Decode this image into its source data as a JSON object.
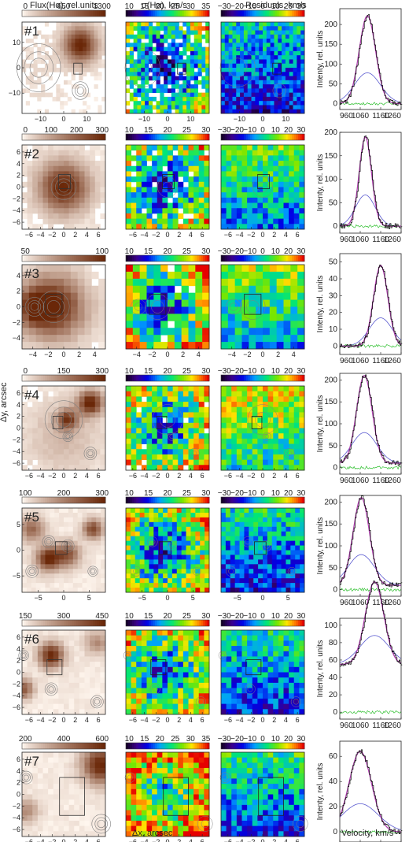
{
  "headers": {
    "flux": "Flux(Hα), rel.units",
    "sigma": "σ(Hα), km/s",
    "residuals": "Residuals, km/s"
  },
  "axis_labels": {
    "dy": "Δy, arcsec",
    "dx": "Δx, arcsec",
    "velocity": "Velocity, km/s",
    "intensity": "Intenty, rel. units"
  },
  "colors": {
    "flux_low": "#fff6ee",
    "flux_high": "#6a2708",
    "data_line": "#000000",
    "fit_total": "#b040b0",
    "fit_components": "#5a5ad0",
    "fit_residual": "#30c030",
    "contour": "#808080"
  },
  "chart_data": [
    {
      "type": "heatmap",
      "id": "flux-maps",
      "colorbar_ticks": [
        [
          "0",
          "650",
          "1300"
        ],
        [
          "0",
          "100",
          "200",
          "300"
        ],
        [
          "50",
          "100"
        ],
        [
          "0",
          "150",
          "300"
        ],
        [
          "100",
          "200",
          "300"
        ],
        [
          "150",
          "300",
          "450"
        ],
        [
          "200",
          "400",
          "600"
        ]
      ],
      "panel_labels": [
        "#1",
        "#2",
        "#3",
        "#4",
        "#5",
        "#6",
        "#7"
      ]
    },
    {
      "type": "heatmap",
      "id": "sigma-maps",
      "colorbar_ticks": [
        [
          "10",
          "15",
          "20",
          "25",
          "30",
          "35"
        ],
        [
          "10",
          "15",
          "20",
          "25",
          "30"
        ],
        [
          "10",
          "15",
          "20",
          "25",
          "30"
        ],
        [
          "10",
          "15",
          "20",
          "25",
          "30"
        ],
        [
          "10",
          "15",
          "20",
          "25",
          "30"
        ],
        [
          "10",
          "15",
          "20",
          "25",
          "30"
        ],
        [
          "10",
          "15",
          "20",
          "25",
          "30",
          "35"
        ]
      ]
    },
    {
      "type": "heatmap",
      "id": "residual-maps",
      "colorbar_ticks": [
        [
          "−30",
          "−20",
          "−10",
          "0",
          "10",
          "20",
          "30"
        ],
        [
          "−30",
          "−20",
          "−10",
          "0",
          "10",
          "20",
          "30"
        ],
        [
          "−30",
          "−20",
          "−10",
          "0",
          "10",
          "20",
          "30"
        ],
        [
          "−30",
          "−20",
          "−10",
          "0",
          "10",
          "20",
          "30"
        ],
        [
          "−30",
          "−20",
          "−10",
          "0",
          "10",
          "20",
          "30"
        ],
        [
          "−30",
          "−20",
          "−10",
          "0",
          "10",
          "20",
          "30"
        ],
        [
          "−30",
          "−20",
          "−10",
          "0",
          "10",
          "20",
          "30"
        ]
      ]
    },
    {
      "type": "line",
      "id": "line-profiles",
      "x_ticks": [
        "960",
        "1060",
        "1160",
        "1260"
      ],
      "rows": [
        {
          "y_ticks": [
            "0",
            "50",
            "100",
            "150",
            "200"
          ],
          "ylim": [
            -15,
            240
          ]
        },
        {
          "y_ticks": [
            "0",
            "50",
            "100",
            "150",
            "200"
          ],
          "ylim": [
            -15,
            200
          ]
        },
        {
          "y_ticks": [
            "0",
            "10",
            "20",
            "30",
            "40",
            "50"
          ],
          "ylim": [
            -5,
            55
          ]
        },
        {
          "y_ticks": [
            "0",
            "50",
            "100",
            "150",
            "200"
          ],
          "ylim": [
            -15,
            215
          ]
        },
        {
          "y_ticks": [
            "0",
            "50",
            "100",
            "150",
            "200"
          ],
          "ylim": [
            -15,
            215
          ]
        },
        {
          "y_ticks": [
            "0",
            "20",
            "40",
            "60",
            "80",
            "100"
          ],
          "ylim": [
            -8,
            108
          ]
        },
        {
          "y_ticks": [
            "0",
            "20",
            "40",
            "60"
          ],
          "ylim": [
            -8,
            72
          ]
        }
      ]
    }
  ],
  "map_axes": [
    {
      "ticks": [
        "−10",
        "0",
        "10"
      ],
      "lim": 18
    },
    {
      "ticks": [
        "−6",
        "−4",
        "−2",
        "0",
        "2",
        "4",
        "6"
      ],
      "lim": 7.2
    },
    {
      "ticks": [
        "−4",
        "−2",
        "0",
        "2",
        "4"
      ],
      "lim": 5.4
    },
    {
      "ticks": [
        "−6",
        "−4",
        "−2",
        "0",
        "2",
        "4",
        "6"
      ],
      "lim": 7.2
    },
    {
      "ticks": [
        "−5",
        "0",
        "5"
      ],
      "lim": 8.2
    },
    {
      "ticks": [
        "−6",
        "−4",
        "−2",
        "0",
        "2",
        "4",
        "6"
      ],
      "lim": 7.2
    },
    {
      "ticks": [
        "−6",
        "−4",
        "−2",
        "0",
        "2",
        "4",
        "6"
      ],
      "lim": 7.2
    }
  ]
}
